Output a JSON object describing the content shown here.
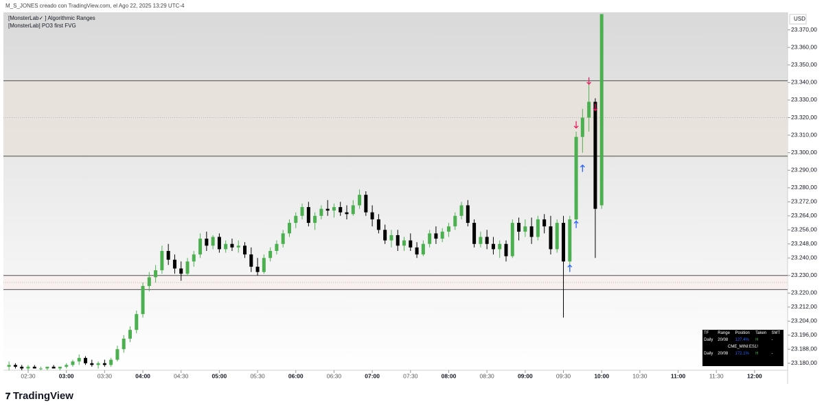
{
  "chart_data": {
    "type": "candlestick",
    "header": "M_S_JONES creado con TradingView.com, el Ago 22, 2025 13:29 UTC-4",
    "indicators": [
      "[MonsterLab✓ ] Algorithmic Ranges",
      "[MonsterLab] PO3 first FVG"
    ],
    "currency": "USD",
    "up_color": "#4caf50",
    "down_color": "#000000",
    "x": [
      "02:15",
      "02:20",
      "02:25",
      "02:30",
      "02:35",
      "02:40",
      "02:45",
      "02:50",
      "02:55",
      "03:00",
      "03:05",
      "03:10",
      "03:15",
      "03:20",
      "03:25",
      "03:30",
      "03:35",
      "03:40",
      "03:45",
      "03:50",
      "03:55",
      "04:00",
      "04:05",
      "04:10",
      "04:15",
      "04:20",
      "04:25",
      "04:30",
      "04:35",
      "04:40",
      "04:45",
      "04:50",
      "04:55",
      "05:00",
      "05:05",
      "05:10",
      "05:15",
      "05:20",
      "05:25",
      "05:30",
      "05:35",
      "05:40",
      "05:45",
      "05:50",
      "05:55",
      "06:00",
      "06:05",
      "06:10",
      "06:15",
      "06:20",
      "06:25",
      "06:30",
      "06:35",
      "06:40",
      "06:45",
      "06:50",
      "06:55",
      "07:00",
      "07:05",
      "07:10",
      "07:15",
      "07:20",
      "07:25",
      "07:30",
      "07:35",
      "07:40",
      "07:45",
      "07:50",
      "07:55",
      "08:00",
      "08:05",
      "08:10",
      "08:15",
      "08:20",
      "08:25",
      "08:30",
      "08:35",
      "08:40",
      "08:45",
      "08:50",
      "08:55",
      "09:00",
      "09:05",
      "09:10",
      "09:15",
      "09:20",
      "09:25",
      "09:30",
      "09:35",
      "09:40",
      "09:45",
      "09:50",
      "09:55",
      "10:00"
    ],
    "open": [
      23178,
      23179,
      23178,
      23177,
      23178,
      23177,
      23177,
      23178,
      23177,
      23178,
      23179,
      23181,
      23183,
      23180,
      23179,
      23180,
      23179,
      23182,
      23188,
      23194,
      23199,
      23208,
      23224,
      23229,
      23233,
      23244,
      23239,
      23234,
      23231,
      23238,
      23242,
      23251,
      23247,
      23252,
      23245,
      23248,
      23246,
      23247,
      23242,
      23235,
      23232,
      23240,
      23244,
      23248,
      23254,
      23260,
      23264,
      23269,
      23260,
      23264,
      23268,
      23267,
      23269,
      23266,
      23265,
      23270,
      23276,
      23266,
      23262,
      23256,
      23250,
      23253,
      23247,
      23250,
      23246,
      23242,
      23248,
      23254,
      23251,
      23255,
      23258,
      23264,
      23270,
      23260,
      23248,
      23252,
      23248,
      23245,
      23248,
      23241,
      23260,
      23255,
      23258,
      23252,
      23262,
      23258,
      23245,
      23260,
      23238,
      23262,
      23309,
      23320,
      23329,
      23270
    ],
    "high": [
      23181,
      23180,
      23179,
      23179,
      23179,
      23178,
      23178,
      23179,
      23178,
      23180,
      23182,
      23185,
      23184,
      23182,
      23181,
      23182,
      23183,
      23190,
      23196,
      23201,
      23210,
      23226,
      23232,
      23236,
      23247,
      23248,
      23242,
      23238,
      23240,
      23244,
      23254,
      23255,
      23253,
      23254,
      23250,
      23251,
      23250,
      23249,
      23246,
      23240,
      23242,
      23246,
      23250,
      23256,
      23262,
      23266,
      23271,
      23272,
      23266,
      23270,
      23273,
      23271,
      23272,
      23270,
      23273,
      23279,
      23278,
      23270,
      23265,
      23259,
      23256,
      23256,
      23252,
      23254,
      23249,
      23250,
      23256,
      23258,
      23257,
      23260,
      23266,
      23272,
      23273,
      23262,
      23255,
      23256,
      23252,
      23250,
      23250,
      23262,
      23263,
      23262,
      23263,
      23264,
      23265,
      23264,
      23262,
      23264,
      23264,
      23312,
      23325,
      23342,
      23331,
      23379
    ],
    "low": [
      23176,
      23177,
      23176,
      23176,
      23177,
      23176,
      23176,
      23177,
      23176,
      23177,
      23178,
      23179,
      23179,
      23178,
      23177,
      23178,
      23178,
      23181,
      23186,
      23192,
      23197,
      23206,
      23221,
      23226,
      23231,
      23236,
      23231,
      23227,
      23230,
      23235,
      23240,
      23244,
      23245,
      23243,
      23243,
      23244,
      23243,
      23240,
      23232,
      23230,
      23231,
      23238,
      23242,
      23246,
      23252,
      23257,
      23262,
      23258,
      23256,
      23262,
      23264,
      23263,
      23264,
      23262,
      23264,
      23268,
      23264,
      23258,
      23254,
      23248,
      23246,
      23244,
      23244,
      23244,
      23240,
      23241,
      23246,
      23248,
      23249,
      23252,
      23256,
      23262,
      23258,
      23246,
      23246,
      23245,
      23242,
      23240,
      23238,
      23240,
      23250,
      23252,
      23248,
      23250,
      23254,
      23242,
      23243,
      23206,
      23234,
      23260,
      23300,
      23312,
      23240,
      23268
    ],
    "close": [
      23179,
      23178,
      23177,
      23178,
      23177,
      23177,
      23178,
      23177,
      23178,
      23179,
      23181,
      23183,
      23180,
      23179,
      23180,
      23179,
      23182,
      23188,
      23194,
      23199,
      23208,
      23224,
      23229,
      23233,
      23244,
      23239,
      23234,
      23231,
      23238,
      23242,
      23251,
      23247,
      23252,
      23245,
      23248,
      23246,
      23247,
      23242,
      23235,
      23232,
      23240,
      23244,
      23248,
      23254,
      23260,
      23264,
      23269,
      23260,
      23264,
      23268,
      23267,
      23269,
      23266,
      23265,
      23270,
      23276,
      23266,
      23262,
      23256,
      23250,
      23253,
      23247,
      23250,
      23246,
      23242,
      23248,
      23254,
      23251,
      23255,
      23258,
      23264,
      23270,
      23260,
      23248,
      23252,
      23248,
      23245,
      23248,
      23241,
      23260,
      23255,
      23258,
      23252,
      23262,
      23258,
      23245,
      23260,
      23238,
      23262,
      23309,
      23320,
      23329,
      23268,
      23379
    ],
    "ylim": [
      23176,
      23380
    ],
    "yticks": [
      {
        "value": 23370,
        "label": "23.370,00"
      },
      {
        "value": 23360,
        "label": "23.360,00"
      },
      {
        "value": 23350,
        "label": "23.350,00"
      },
      {
        "value": 23340,
        "label": "23.340,00"
      },
      {
        "value": 23330,
        "label": "23.330,00"
      },
      {
        "value": 23320,
        "label": "23.320,00"
      },
      {
        "value": 23310,
        "label": "23.310,00"
      },
      {
        "value": 23300,
        "label": "23.300,00"
      },
      {
        "value": 23290,
        "label": "23.290,00"
      },
      {
        "value": 23280,
        "label": "23.280,00"
      },
      {
        "value": 23272,
        "label": "23.272,00"
      },
      {
        "value": 23264,
        "label": "23.264,00"
      },
      {
        "value": 23256,
        "label": "23.256,00"
      },
      {
        "value": 23248,
        "label": "23.248,00"
      },
      {
        "value": 23240,
        "label": "23.240,00"
      },
      {
        "value": 23230,
        "label": "23.230,00"
      },
      {
        "value": 23220,
        "label": "23.220,00"
      },
      {
        "value": 23212,
        "label": "23.212,00"
      },
      {
        "value": 23204,
        "label": "23.204,00"
      },
      {
        "value": 23196,
        "label": "23.196,00"
      },
      {
        "value": 23188,
        "label": "23.188,00"
      },
      {
        "value": 23180,
        "label": "23.180,00"
      }
    ],
    "xticks": [
      "02:30",
      "03:00",
      "03:30",
      "04:00",
      "04:30",
      "05:00",
      "05:30",
      "06:00",
      "06:30",
      "07:00",
      "07:30",
      "08:00",
      "08:30",
      "09:00",
      "09:30",
      "10:00",
      "10:30",
      "11:00",
      "11:30",
      "12:00"
    ],
    "zones": [
      {
        "low": 23298,
        "high": 23341,
        "color": "#e8e3da"
      },
      {
        "low": 23222,
        "high": 23230,
        "color": "#f7efec"
      }
    ],
    "levels": [
      {
        "price": 23341,
        "style": "solid"
      },
      {
        "price": 23320,
        "style": "dotted"
      },
      {
        "price": 23298,
        "style": "solid"
      },
      {
        "price": 23230,
        "style": "solid"
      },
      {
        "price": 23226,
        "style": "dotted"
      },
      {
        "price": 23222,
        "style": "solid"
      }
    ],
    "signals": [
      {
        "time": "09:35",
        "price": 23234,
        "dir": "up",
        "color": "#2962ff"
      },
      {
        "time": "09:40",
        "price": 23259,
        "dir": "up",
        "color": "#2962ff"
      },
      {
        "time": "09:45",
        "price": 23291,
        "dir": "up",
        "color": "#2962ff"
      },
      {
        "time": "09:40",
        "price": 23316,
        "dir": "down",
        "color": "#e91e63"
      },
      {
        "time": "09:50",
        "price": 23341,
        "dir": "down",
        "color": "#e91e63"
      },
      {
        "time": "09:55",
        "price": 23326,
        "dir": "down",
        "color": "#e91e63"
      }
    ],
    "table": {
      "header": [
        "TF",
        "Range",
        "Position",
        "Taken",
        "SMT"
      ],
      "rows": [
        [
          "Daily",
          "20/08",
          "127.4%",
          "H",
          "-"
        ],
        [
          "CME_MINI:ES1!"
        ],
        [
          "Daily",
          "20/08",
          "172.1%",
          "H",
          "-"
        ]
      ]
    },
    "brand": "TradingView"
  }
}
